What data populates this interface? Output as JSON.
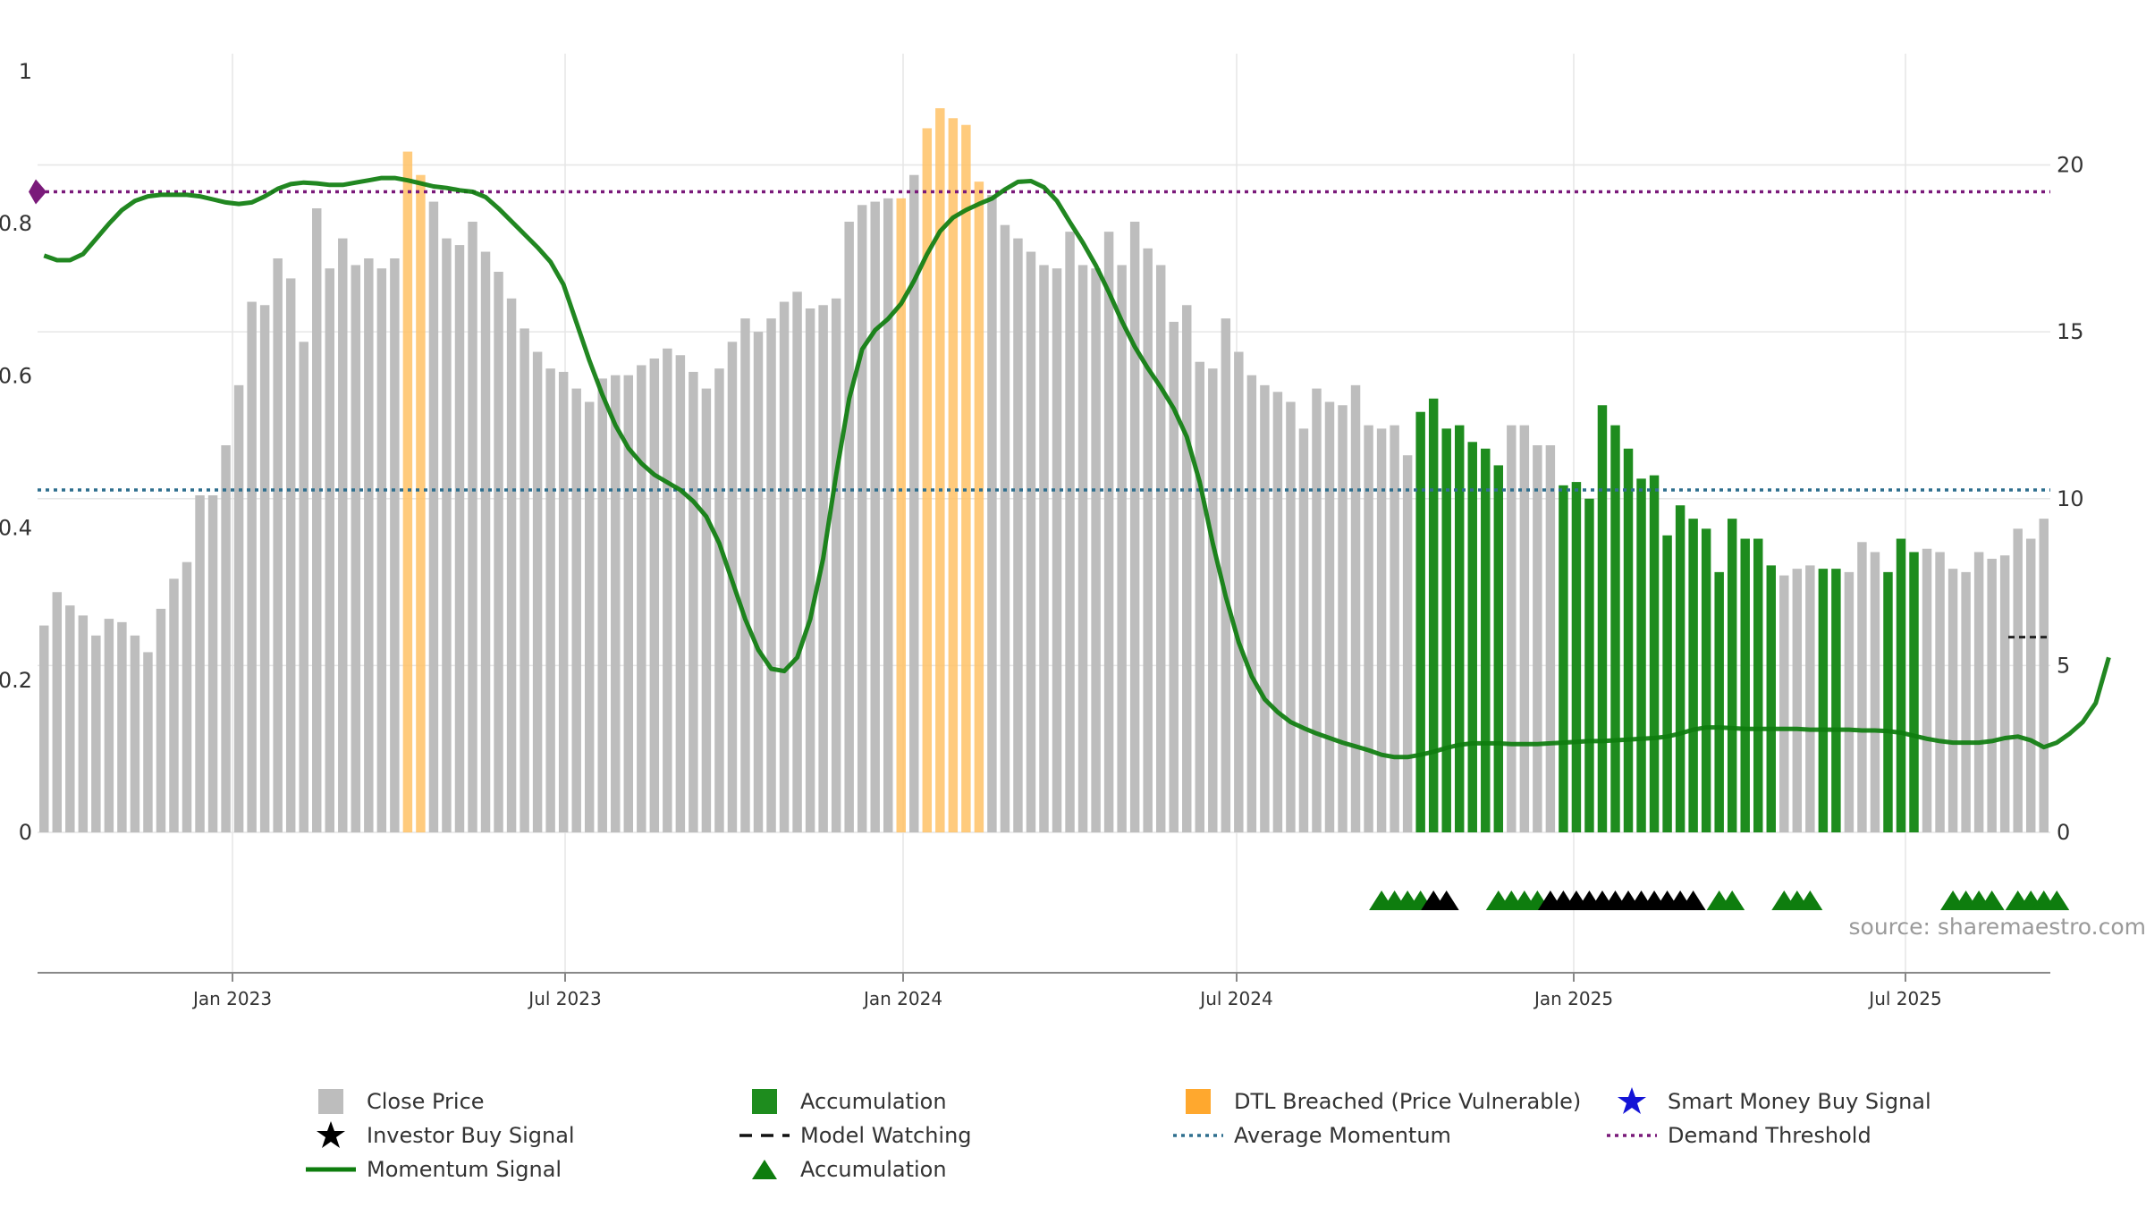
{
  "source_text": "source: sharemaestro.com",
  "colors": {
    "close": "#bdbdbd",
    "accumulation": "#1e8c1e",
    "dtl": "#ffc266",
    "momentum": "#0e7d0e",
    "avg_momentum": "#2e6f8e",
    "demand": "#7a1a7a",
    "grid": "#e6e6e6",
    "axis": "#888888"
  },
  "legend": [
    {
      "label": "Close Price",
      "swatch": "square-gray"
    },
    {
      "label": "Investor Buy Signal",
      "swatch": "star-black"
    },
    {
      "label": "Momentum Signal",
      "swatch": "line-green"
    },
    {
      "label": "Accumulation",
      "swatch": "square-green"
    },
    {
      "label": "Model Watching",
      "swatch": "dash-black"
    },
    {
      "label": "Accumulation",
      "swatch": "triangle-green"
    },
    {
      "label": "DTL Breached (Price Vulnerable)",
      "swatch": "square-orange"
    },
    {
      "label": "Average Momentum",
      "swatch": "dotted-blue"
    },
    {
      "label": "Smart Money Buy Signal",
      "swatch": "star-blue"
    },
    {
      "label": "Demand Threshold",
      "swatch": "dotted-purple"
    }
  ],
  "chart_data": {
    "type": "bar",
    "x_ticks": [
      "Jan 2023",
      "Jul 2023",
      "Jan 2024",
      "Jul 2024",
      "Jan 2025",
      "Jul 2025"
    ],
    "y_left_ticks": [
      "0",
      "0.2",
      "0.4",
      "0.6",
      "0.8",
      "1"
    ],
    "y_left_range": [
      0,
      1
    ],
    "y_right_ticks": [
      "0",
      "5",
      "10",
      "15",
      "20"
    ],
    "y_right_range": [
      0,
      22.8
    ],
    "grid": true,
    "legend_position": "bottom",
    "close_price": [
      6.2,
      7.2,
      6.8,
      6.5,
      5.9,
      6.4,
      6.3,
      5.9,
      5.4,
      6.7,
      7.6,
      8.1,
      10.1,
      10.1,
      11.6,
      13.4,
      15.9,
      15.8,
      17.2,
      16.6,
      14.7,
      18.7,
      16.9,
      17.8,
      17.0,
      17.2,
      16.9,
      17.2,
      20.4,
      19.7,
      18.9,
      17.8,
      17.6,
      18.3,
      17.4,
      16.8,
      16.0,
      15.1,
      14.4,
      13.9,
      13.8,
      13.3,
      12.9,
      13.6,
      13.7,
      13.7,
      14.0,
      14.2,
      14.5,
      14.3,
      13.8,
      13.3,
      13.9,
      14.7,
      15.4,
      15.0,
      15.4,
      15.9,
      16.2,
      15.7,
      15.8,
      16.0,
      18.3,
      18.8,
      18.9,
      19.0,
      19.0,
      19.7,
      21.1,
      21.7,
      21.4,
      21.2,
      19.5,
      19.1,
      18.2,
      17.8,
      17.4,
      17.0,
      16.9,
      18.0,
      17.0,
      16.9,
      18.0,
      17.0,
      18.3,
      17.5,
      17.0,
      15.3,
      15.8,
      14.1,
      13.9,
      15.4,
      14.4,
      13.7,
      13.4,
      13.2,
      12.9,
      12.1,
      13.3,
      12.9,
      12.8,
      13.4,
      12.2,
      12.1,
      12.2,
      11.3,
      12.6,
      13.0,
      12.1,
      12.2,
      11.7,
      11.5,
      11.0,
      12.2,
      12.2,
      11.6,
      11.6,
      10.4,
      10.5,
      10.0,
      12.8,
      12.2,
      11.5,
      10.6,
      10.7,
      8.9,
      9.8,
      9.4,
      9.1,
      7.8,
      9.4,
      8.8,
      8.8,
      8.0,
      7.7,
      7.9,
      8.0,
      7.9,
      7.9,
      7.8,
      8.7,
      8.4,
      7.8,
      8.8,
      8.4,
      8.5,
      8.4,
      7.9,
      7.8,
      8.4,
      8.2,
      8.3,
      9.1,
      8.8,
      9.4
    ],
    "bar_kind": [
      "c",
      "c",
      "c",
      "c",
      "c",
      "c",
      "c",
      "c",
      "c",
      "c",
      "c",
      "c",
      "c",
      "c",
      "c",
      "c",
      "c",
      "c",
      "c",
      "c",
      "c",
      "c",
      "c",
      "c",
      "c",
      "c",
      "c",
      "c",
      "d",
      "d",
      "c",
      "c",
      "c",
      "c",
      "c",
      "c",
      "c",
      "c",
      "c",
      "c",
      "c",
      "c",
      "c",
      "c",
      "c",
      "c",
      "c",
      "c",
      "c",
      "c",
      "c",
      "c",
      "c",
      "c",
      "c",
      "c",
      "c",
      "c",
      "c",
      "c",
      "c",
      "c",
      "c",
      "c",
      "c",
      "c",
      "d",
      "c",
      "d",
      "d",
      "d",
      "d",
      "d",
      "c",
      "c",
      "c",
      "c",
      "c",
      "c",
      "c",
      "c",
      "c",
      "c",
      "c",
      "c",
      "c",
      "c",
      "c",
      "c",
      "c",
      "c",
      "c",
      "c",
      "c",
      "c",
      "c",
      "c",
      "c",
      "c",
      "c",
      "c",
      "c",
      "c",
      "c",
      "c",
      "c",
      "a",
      "a",
      "a",
      "a",
      "a",
      "a",
      "a",
      "c",
      "c",
      "c",
      "c",
      "a",
      "a",
      "a",
      "a",
      "a",
      "a",
      "a",
      "a",
      "a",
      "a",
      "a",
      "a",
      "a",
      "a",
      "a",
      "a",
      "a",
      "c",
      "c",
      "c",
      "a",
      "a",
      "c",
      "c",
      "c",
      "a",
      "a",
      "a",
      "c",
      "c",
      "c",
      "c",
      "c",
      "c",
      "c",
      "c",
      "c",
      "c",
      "c",
      "c",
      "a",
      "a",
      "a",
      "a",
      "a",
      "c",
      "c",
      "a",
      "a",
      "a",
      "a"
    ],
    "momentum": [
      0.758,
      0.752,
      0.752,
      0.76,
      0.78,
      0.8,
      0.818,
      0.83,
      0.836,
      0.838,
      0.838,
      0.838,
      0.836,
      0.832,
      0.828,
      0.826,
      0.828,
      0.836,
      0.846,
      0.852,
      0.854,
      0.853,
      0.851,
      0.851,
      0.854,
      0.857,
      0.86,
      0.86,
      0.857,
      0.853,
      0.849,
      0.847,
      0.844,
      0.842,
      0.835,
      0.82,
      0.803,
      0.786,
      0.769,
      0.75,
      0.72,
      0.67,
      0.62,
      0.575,
      0.535,
      0.505,
      0.485,
      0.47,
      0.46,
      0.45,
      0.435,
      0.415,
      0.38,
      0.33,
      0.28,
      0.24,
      0.215,
      0.212,
      0.23,
      0.28,
      0.36,
      0.47,
      0.57,
      0.635,
      0.66,
      0.675,
      0.695,
      0.725,
      0.76,
      0.79,
      0.808,
      0.818,
      0.826,
      0.833,
      0.845,
      0.855,
      0.856,
      0.848,
      0.83,
      0.802,
      0.775,
      0.745,
      0.71,
      0.672,
      0.638,
      0.61,
      0.585,
      0.557,
      0.52,
      0.46,
      0.38,
      0.31,
      0.25,
      0.205,
      0.175,
      0.158,
      0.145,
      0.137,
      0.13,
      0.124,
      0.118,
      0.113,
      0.108,
      0.102,
      0.099,
      0.099,
      0.102,
      0.106,
      0.111,
      0.115,
      0.117,
      0.117,
      0.117,
      0.116,
      0.116,
      0.116,
      0.117,
      0.118,
      0.119,
      0.12,
      0.12,
      0.121,
      0.122,
      0.123,
      0.124,
      0.126,
      0.13,
      0.135,
      0.138,
      0.138,
      0.137,
      0.136,
      0.136,
      0.136,
      0.136,
      0.136,
      0.135,
      0.135,
      0.135,
      0.135,
      0.134,
      0.134,
      0.133,
      0.131,
      0.127,
      0.123,
      0.12,
      0.118,
      0.118,
      0.118,
      0.12,
      0.124,
      0.126,
      0.121,
      0.112,
      0.118,
      0.13,
      0.145,
      0.17,
      0.23
    ],
    "average_momentum": 0.45,
    "demand_threshold": 0.842,
    "accumulation_triangle_ranges": [
      [
        103,
        106
      ],
      [
        112,
        115
      ],
      [
        129,
        130
      ],
      [
        134,
        136
      ],
      [
        147,
        150
      ],
      [
        152,
        155
      ]
    ],
    "investor_buy_triangle_ranges": [
      [
        107,
        108
      ],
      [
        116,
        127
      ]
    ],
    "model_watching_level": 5.85
  }
}
